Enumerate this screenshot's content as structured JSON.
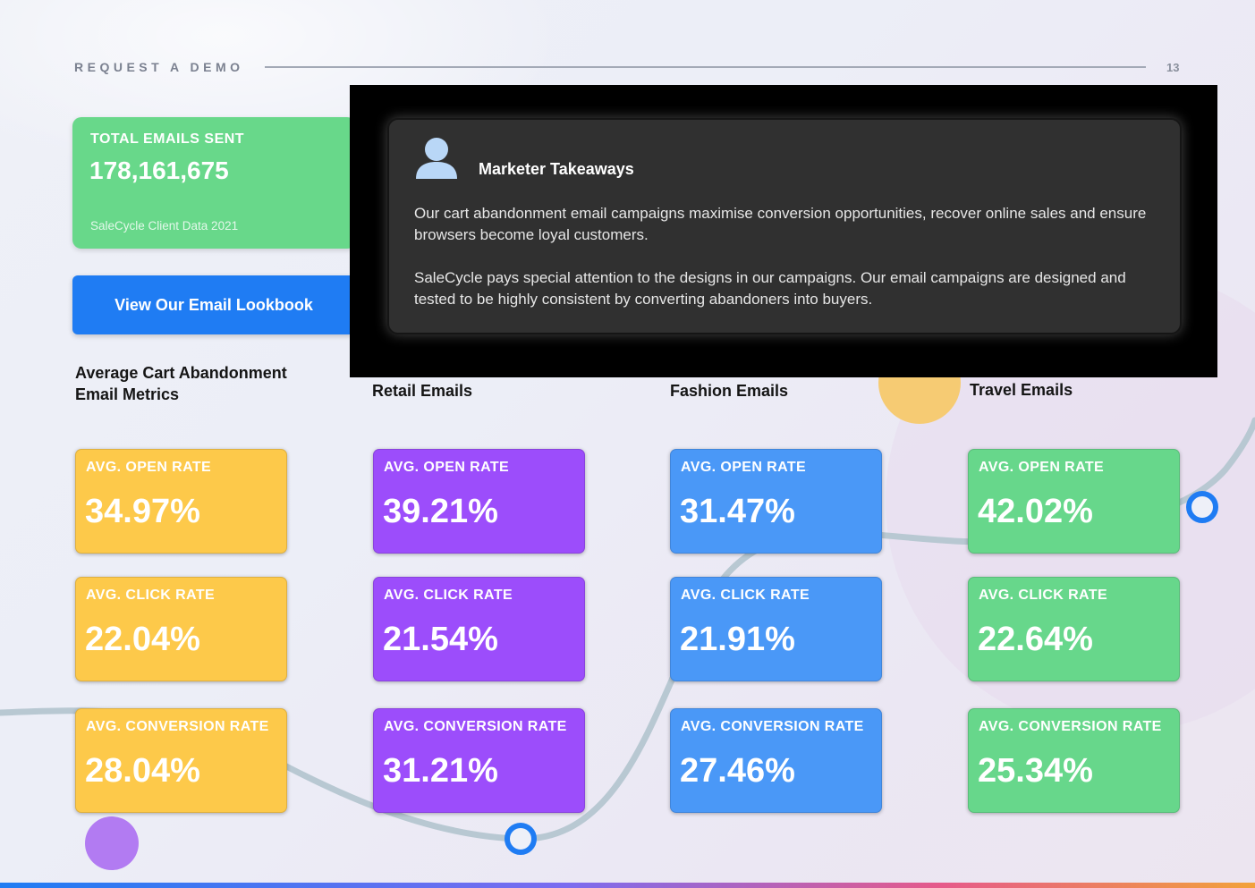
{
  "header": {
    "label": "REQUEST A DEMO",
    "page_number": "13"
  },
  "total_card": {
    "title": "TOTAL EMAILS SENT",
    "value": "178,161,675",
    "source": "SaleCycle Client Data 2021",
    "color": "#68d88a"
  },
  "lookbook_button": {
    "label": "View Our Email Lookbook",
    "color": "#1f7cf3"
  },
  "takeaways": {
    "icon": "user-icon",
    "title": "Marketer Takeaways",
    "paragraph1": "Our cart abandonment email campaigns maximise conversion opportunities, recover online sales and ensure browsers become loyal customers.",
    "paragraph2": "SaleCycle pays special attention to the designs in our campaigns. Our email campaigns are designed and tested to be highly consistent by converting abandoners into buyers."
  },
  "metrics_section": {
    "heading": "Average Cart Abandonment Email Metrics",
    "columns": [
      {
        "heading": "",
        "color": "#fdc94a",
        "metrics": [
          {
            "label": "AVG. OPEN RATE",
            "value": "34.97%"
          },
          {
            "label": "AVG. CLICK RATE",
            "value": "22.04%"
          },
          {
            "label": "AVG. CONVERSION RATE",
            "value": "28.04%"
          }
        ]
      },
      {
        "heading": "Retail Emails",
        "color": "#9c4dfb",
        "metrics": [
          {
            "label": "AVG. OPEN RATE",
            "value": "39.21%"
          },
          {
            "label": "AVG. CLICK RATE",
            "value": "21.54%"
          },
          {
            "label": "AVG. CONVERSION RATE",
            "value": "31.21%"
          }
        ]
      },
      {
        "heading": "Fashion Emails",
        "color": "#4a98f7",
        "metrics": [
          {
            "label": "AVG. OPEN RATE",
            "value": "31.47%"
          },
          {
            "label": "AVG. CLICK RATE",
            "value": "21.91%"
          },
          {
            "label": "AVG. CONVERSION RATE",
            "value": "27.46%"
          }
        ]
      },
      {
        "heading": "Travel Emails",
        "color": "#67d78b",
        "metrics": [
          {
            "label": "AVG. OPEN RATE",
            "value": "42.02%"
          },
          {
            "label": "AVG. CLICK RATE",
            "value": "22.64%"
          },
          {
            "label": "AVG. CONVERSION RATE",
            "value": "25.34%"
          }
        ]
      }
    ]
  }
}
